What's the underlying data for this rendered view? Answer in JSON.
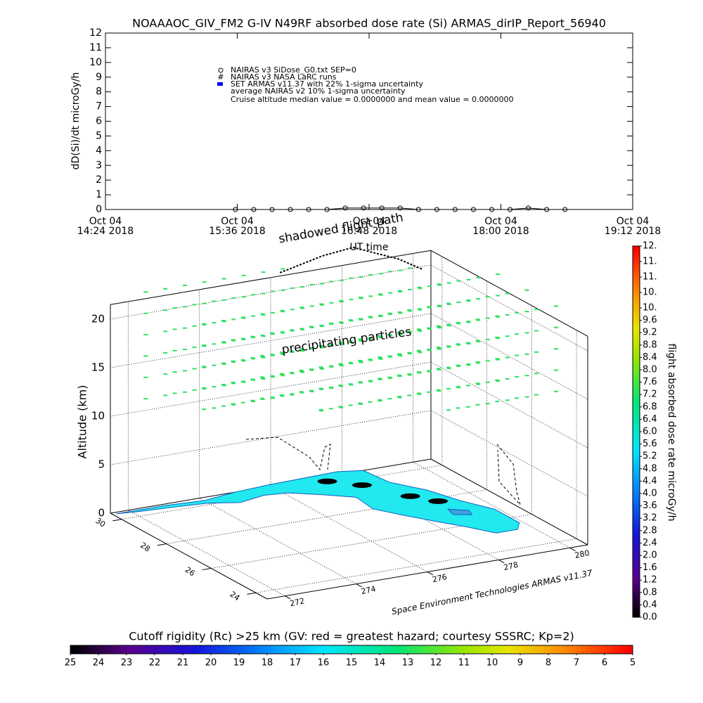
{
  "chart_data": [
    {
      "type": "line",
      "title": "NOAAAOC_GIV_FM2 G-IV   N49RF  absorbed dose rate (Si) ARMAS_dirIP_Report_56940",
      "y_label": "dD(Si)/dt microGy/h",
      "x_label": "UT time",
      "xlim": [
        "2018-10-04 14:24",
        "2018-10-04 19:12"
      ],
      "xticks": [
        {
          "value": "2018-10-04 14:24",
          "label": [
            "Oct 04",
            "14:24 2018"
          ]
        },
        {
          "value": "2018-10-04 15:36",
          "label": [
            "Oct 04",
            "15:36 2018"
          ]
        },
        {
          "value": "2018-10-04 16:48",
          "label": [
            "Oct 04",
            "16:48 2018"
          ]
        },
        {
          "value": "2018-10-04 18:00",
          "label": [
            "Oct 04",
            "18:00 2018"
          ]
        },
        {
          "value": "2018-10-04 19:12",
          "label": [
            "Oct 04",
            "19:12 2018"
          ]
        }
      ],
      "ylim": [
        0,
        12
      ],
      "yticks": [
        0,
        1,
        2,
        3,
        4,
        5,
        6,
        7,
        8,
        9,
        10,
        11,
        12
      ],
      "x": [
        "2018-10-04 15:35",
        "2018-10-04 15:45",
        "2018-10-04 15:55",
        "2018-10-04 16:05",
        "2018-10-04 16:15",
        "2018-10-04 16:25",
        "2018-10-04 16:35",
        "2018-10-04 16:45",
        "2018-10-04 16:55",
        "2018-10-04 17:05",
        "2018-10-04 17:15",
        "2018-10-04 17:25",
        "2018-10-04 17:35",
        "2018-10-04 17:45",
        "2018-10-04 17:55",
        "2018-10-04 18:05",
        "2018-10-04 18:15",
        "2018-10-04 18:25",
        "2018-10-04 18:35"
      ],
      "series": [
        {
          "name": "NAIRAS v3 SiDose_G0.txt SEP=0",
          "color": "#000000",
          "marker": "circle-x",
          "values": [
            0,
            0,
            0,
            0,
            0,
            0,
            0.1,
            0.1,
            0.1,
            0.1,
            0,
            0,
            0,
            0,
            0,
            0,
            0.1,
            0,
            0
          ]
        },
        {
          "name": "NAIRAS v3 NASA LaRC runs",
          "color": "#000000",
          "marker": "hash",
          "values": [
            null,
            null,
            null,
            null,
            null,
            null,
            null,
            null,
            null,
            null,
            null,
            null,
            null,
            null,
            null,
            null,
            null,
            null,
            null
          ]
        },
        {
          "name": "SET ARMAS v11.37 with 22% 1-sigma uncertainty",
          "color": "#0000ff",
          "marker": "filled",
          "values": [
            null,
            null,
            null,
            null,
            null,
            null,
            null,
            null,
            null,
            null,
            null,
            null,
            null,
            null,
            null,
            null,
            null,
            null,
            null
          ]
        }
      ],
      "annotations": [
        "average NAIRAS v2 10% 1-sigma uncertainty",
        "Cruise altitude median value = 0.0000000 and mean value = 0.0000000"
      ]
    },
    {
      "type": "scene3d",
      "z_label": "Altitude (km)",
      "zlim": [
        0,
        20
      ],
      "zticks": [
        0,
        5,
        10,
        15,
        20
      ],
      "lat_ticks": [
        24,
        26,
        28,
        30
      ],
      "lon_ticks": [
        272,
        274,
        276,
        278,
        280
      ],
      "annotations": [
        "shadowed flight path",
        "precipitating particles"
      ],
      "credit": "Space Environment Technologies ARMAS v11.37"
    },
    {
      "type": "colorbar",
      "orientation": "vertical",
      "label": "flight absorbed dose rate microGy/h",
      "clim": [
        0,
        12
      ],
      "ticks": [
        {
          "value": 0,
          "label": "0.0"
        },
        {
          "value": 0.4,
          "label": "0.4"
        },
        {
          "value": 0.8,
          "label": "0.8"
        },
        {
          "value": 1.2,
          "label": "1.2"
        },
        {
          "value": 1.6,
          "label": "1.6"
        },
        {
          "value": 2,
          "label": "2.0"
        },
        {
          "value": 2.4,
          "label": "2.4"
        },
        {
          "value": 2.8,
          "label": "2.8"
        },
        {
          "value": 3.2,
          "label": "3.2"
        },
        {
          "value": 3.6,
          "label": "3.6"
        },
        {
          "value": 4,
          "label": "4.0"
        },
        {
          "value": 4.4,
          "label": "4.4"
        },
        {
          "value": 4.8,
          "label": "4.8"
        },
        {
          "value": 5.2,
          "label": "5.2"
        },
        {
          "value": 5.6,
          "label": "5.6"
        },
        {
          "value": 6,
          "label": "6.0"
        },
        {
          "value": 6.4,
          "label": "6.4"
        },
        {
          "value": 6.8,
          "label": "6.8"
        },
        {
          "value": 7.2,
          "label": "7.2"
        },
        {
          "value": 7.6,
          "label": "7.6"
        },
        {
          "value": 8,
          "label": "8.0"
        },
        {
          "value": 8.4,
          "label": "8.4"
        },
        {
          "value": 8.8,
          "label": "8.8"
        },
        {
          "value": 9.2,
          "label": "9.2"
        },
        {
          "value": 9.6,
          "label": "9.6"
        },
        {
          "value": 10,
          "label": "10."
        },
        {
          "value": 10.5,
          "label": "10."
        },
        {
          "value": 11,
          "label": "11."
        },
        {
          "value": 11.5,
          "label": "11."
        },
        {
          "value": 12,
          "label": "12."
        }
      ]
    },
    {
      "type": "colorbar",
      "orientation": "horizontal",
      "label": "Cutoff rigidity (Rc) >25 km (GV: red = greatest hazard; courtesy SSSRC; Kp=2)",
      "clim": [
        25,
        5
      ],
      "ticks": [
        25,
        24,
        23,
        22,
        21,
        20,
        19,
        18,
        17,
        16,
        15,
        14,
        13,
        12,
        11,
        10,
        9,
        8,
        7,
        6,
        5
      ]
    }
  ]
}
